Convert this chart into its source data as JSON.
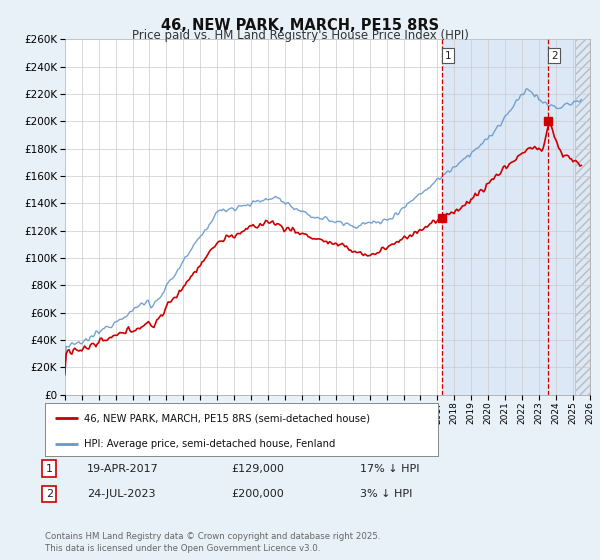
{
  "title": "46, NEW PARK, MARCH, PE15 8RS",
  "subtitle": "Price paid vs. HM Land Registry's House Price Index (HPI)",
  "red_label": "46, NEW PARK, MARCH, PE15 8RS (semi-detached house)",
  "blue_label": "HPI: Average price, semi-detached house, Fenland",
  "annotation1_date": "19-APR-2017",
  "annotation1_price": "£129,000",
  "annotation1_hpi": "17% ↓ HPI",
  "annotation1_year": 2017.29,
  "annotation1_val": 129000,
  "annotation2_date": "24-JUL-2023",
  "annotation2_price": "£200,000",
  "annotation2_hpi": "3% ↓ HPI",
  "annotation2_year": 2023.56,
  "annotation2_val": 200000,
  "xmin": 1995,
  "xmax": 2026,
  "ymin": 0,
  "ymax": 260000,
  "yticks": [
    0,
    20000,
    40000,
    60000,
    80000,
    100000,
    120000,
    140000,
    160000,
    180000,
    200000,
    220000,
    240000,
    260000
  ],
  "footer": "Contains HM Land Registry data © Crown copyright and database right 2025.\nThis data is licensed under the Open Government Licence v3.0.",
  "bg_color": "#e8f0f8",
  "plot_bg": "#ffffff",
  "shade_color": "#dce8f5",
  "red_color": "#cc0000",
  "blue_color": "#6699cc"
}
